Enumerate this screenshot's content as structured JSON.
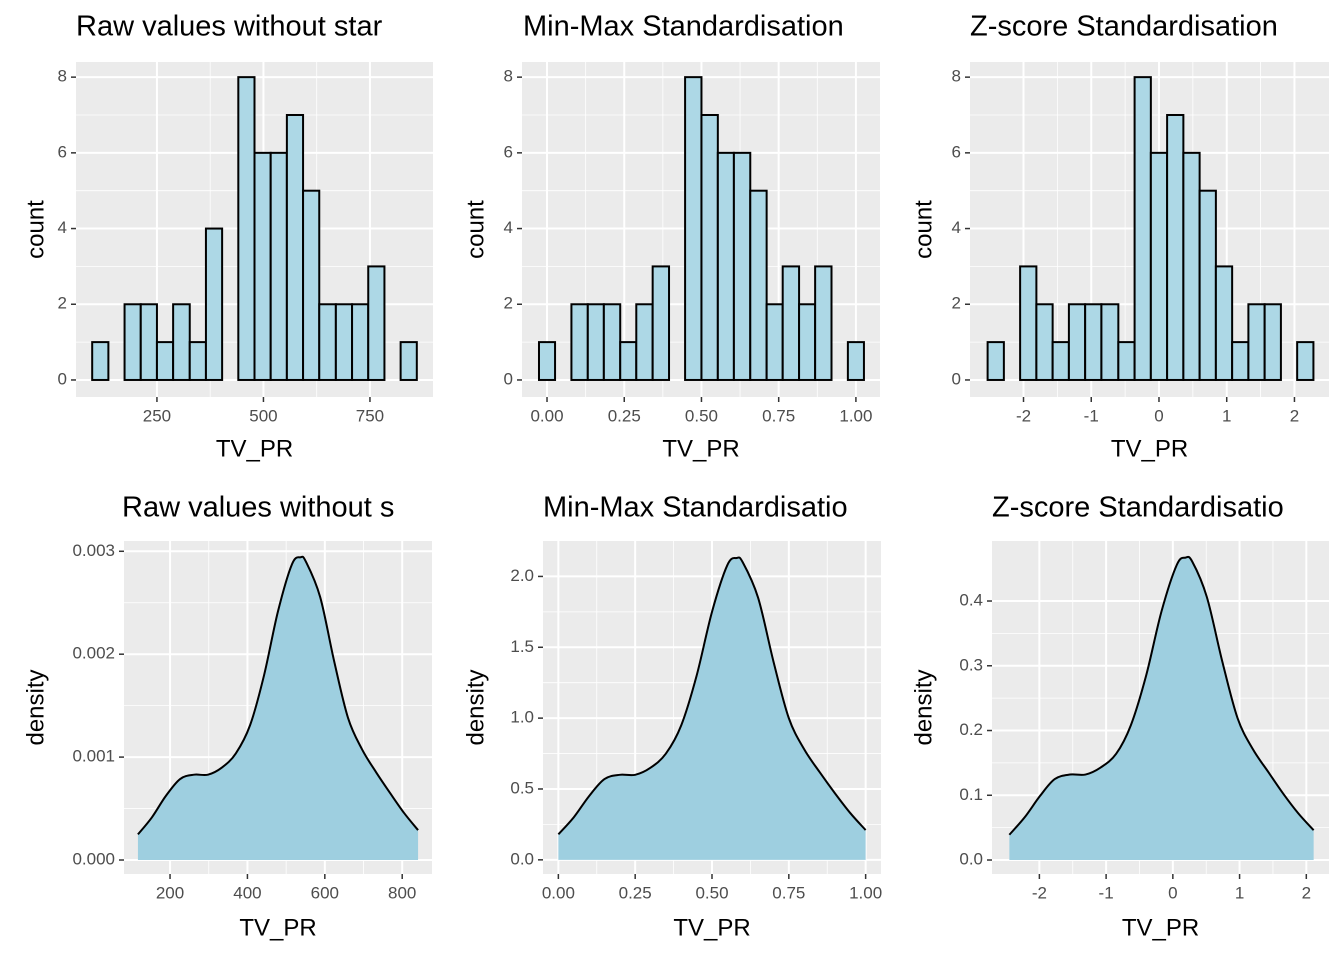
{
  "chart_data": [
    {
      "type": "histogram",
      "title": "Raw values without star",
      "xlabel": "TV_PR",
      "ylabel": "count",
      "bins": [
        98,
        136,
        174,
        212,
        250,
        288,
        327,
        365,
        403,
        441,
        479,
        517,
        555,
        593,
        631,
        670,
        708,
        746,
        784,
        822,
        860
      ],
      "values": [
        1,
        0,
        2,
        2,
        1,
        2,
        1,
        4,
        0,
        8,
        6,
        6,
        7,
        5,
        2,
        2,
        2,
        3,
        0,
        1
      ],
      "color": "#add8e6",
      "edgecolor": "#000000",
      "xlim": [
        60,
        898
      ],
      "ylim": [
        -0.45,
        8.4
      ],
      "xticks": [
        250,
        500,
        750
      ],
      "yticks": [
        0,
        2,
        4,
        6,
        8
      ],
      "grid": true
    },
    {
      "type": "histogram",
      "title": "Min-Max Standardisation",
      "xlabel": "TV_PR",
      "ylabel": "count",
      "bins": [
        -0.026,
        0.026,
        0.079,
        0.132,
        0.184,
        0.237,
        0.289,
        0.342,
        0.395,
        0.447,
        0.5,
        0.553,
        0.605,
        0.658,
        0.711,
        0.763,
        0.816,
        0.868,
        0.921,
        0.974,
        1.026
      ],
      "values": [
        1,
        0,
        2,
        2,
        2,
        1,
        2,
        3,
        0,
        8,
        7,
        6,
        6,
        5,
        2,
        3,
        2,
        3,
        0,
        1
      ],
      "color": "#add8e6",
      "edgecolor": "#000000",
      "xlim": [
        -0.081,
        1.078
      ],
      "ylim": [
        -0.45,
        8.4
      ],
      "xticks": [
        {
          "value": 0,
          "label": "0.00"
        },
        {
          "value": 0.25,
          "label": "0.25"
        },
        {
          "value": 0.5,
          "label": "0.50"
        },
        {
          "value": 0.75,
          "label": "0.75"
        },
        {
          "value": 1,
          "label": "1.00"
        }
      ],
      "yticks": [
        0,
        2,
        4,
        6,
        8
      ],
      "grid": true
    },
    {
      "type": "histogram",
      "title": "Z-score Standardisation",
      "xlabel": "TV_PR",
      "ylabel": "count",
      "bins": [
        -2.53,
        -2.29,
        -2.05,
        -1.81,
        -1.57,
        -1.33,
        -1.09,
        -0.85,
        -0.6,
        -0.36,
        -0.12,
        0.12,
        0.36,
        0.6,
        0.84,
        1.08,
        1.32,
        1.56,
        1.8,
        2.04,
        2.28
      ],
      "values": [
        1,
        0,
        3,
        2,
        1,
        2,
        2,
        2,
        1,
        8,
        6,
        7,
        6,
        5,
        3,
        1,
        2,
        2,
        0,
        1
      ],
      "color": "#add8e6",
      "edgecolor": "#000000",
      "xlim": [
        -2.79,
        2.51
      ],
      "ylim": [
        -0.45,
        8.4
      ],
      "xticks": [
        -2,
        -1,
        0,
        1,
        2
      ],
      "yticks": [
        0,
        2,
        4,
        6,
        8
      ],
      "grid": true
    },
    {
      "type": "density",
      "title": "Raw values without s",
      "xlabel": "TV_PR",
      "ylabel": "density",
      "x": [
        117,
        153,
        189,
        226,
        262,
        298,
        334,
        370,
        407,
        443,
        479,
        515,
        537,
        551,
        588,
        624,
        660,
        696,
        732,
        769,
        805,
        841
      ],
      "values": [
        0.000249,
        0.000414,
        0.000622,
        0.000787,
        0.000829,
        0.000829,
        0.000898,
        0.001036,
        0.001312,
        0.001796,
        0.002417,
        0.002873,
        0.002942,
        0.0029,
        0.002555,
        0.001934,
        0.001381,
        0.001077,
        0.000856,
        0.000649,
        0.000456,
        0.00029
      ],
      "color": "#9ecfe0",
      "edgecolor": "#000000",
      "xlim": [
        81,
        877
      ],
      "ylim": [
        -0.000136,
        0.0031
      ],
      "xticks": [
        200,
        400,
        600,
        800
      ],
      "yticks": [
        {
          "value": 0,
          "label": "0.000"
        },
        0.001,
        0.002,
        0.003
      ],
      "grid": true
    },
    {
      "type": "density",
      "title": "Min-Max Standardisatio",
      "xlabel": "TV_PR",
      "ylabel": "density",
      "x": [
        0,
        0.05,
        0.1,
        0.15,
        0.2,
        0.25,
        0.3,
        0.35,
        0.4,
        0.45,
        0.5,
        0.55,
        0.58,
        0.6,
        0.65,
        0.7,
        0.75,
        0.8,
        0.85,
        0.9,
        0.95,
        1
      ],
      "values": [
        0.18,
        0.3,
        0.45,
        0.57,
        0.6,
        0.6,
        0.65,
        0.75,
        0.95,
        1.3,
        1.75,
        2.08,
        2.13,
        2.1,
        1.85,
        1.4,
        1.0,
        0.78,
        0.62,
        0.47,
        0.33,
        0.21
      ],
      "color": "#9ecfe0",
      "edgecolor": "#000000",
      "xlim": [
        -0.05,
        1.05
      ],
      "ylim": [
        -0.1,
        2.25
      ],
      "xticks": [
        {
          "value": 0,
          "label": "0.00"
        },
        {
          "value": 0.25,
          "label": "0.25"
        },
        {
          "value": 0.5,
          "label": "0.50"
        },
        {
          "value": 0.75,
          "label": "0.75"
        },
        {
          "value": 1,
          "label": "1.00"
        }
      ],
      "yticks": [
        {
          "value": 0,
          "label": "0.0"
        },
        0.5,
        {
          "value": 1,
          "label": "1.0"
        },
        1.5,
        {
          "value": 2,
          "label": "2.0"
        }
      ],
      "grid": true
    },
    {
      "type": "density",
      "title": "Z-score Standardisatio",
      "xlabel": "TV_PR",
      "ylabel": "density",
      "x": [
        -2.45,
        -2.22,
        -1.99,
        -1.77,
        -1.54,
        -1.31,
        -1.08,
        -0.85,
        -0.63,
        -0.4,
        -0.17,
        0.06,
        0.19,
        0.29,
        0.51,
        0.74,
        0.97,
        1.2,
        1.43,
        1.65,
        1.88,
        2.11
      ],
      "values": [
        0.039,
        0.066,
        0.099,
        0.125,
        0.132,
        0.132,
        0.143,
        0.164,
        0.208,
        0.285,
        0.384,
        0.456,
        0.467,
        0.461,
        0.406,
        0.307,
        0.219,
        0.171,
        0.136,
        0.103,
        0.072,
        0.046
      ],
      "color": "#9ecfe0",
      "edgecolor": "#000000",
      "xlim": [
        -2.71,
        2.34
      ],
      "ylim": [
        -0.0216,
        0.4927
      ],
      "xticks": [
        -2,
        -1,
        0,
        1,
        2
      ],
      "yticks": [
        {
          "value": 0,
          "label": "0.0"
        },
        0.1,
        0.2,
        0.3,
        0.4
      ],
      "grid": true
    }
  ]
}
